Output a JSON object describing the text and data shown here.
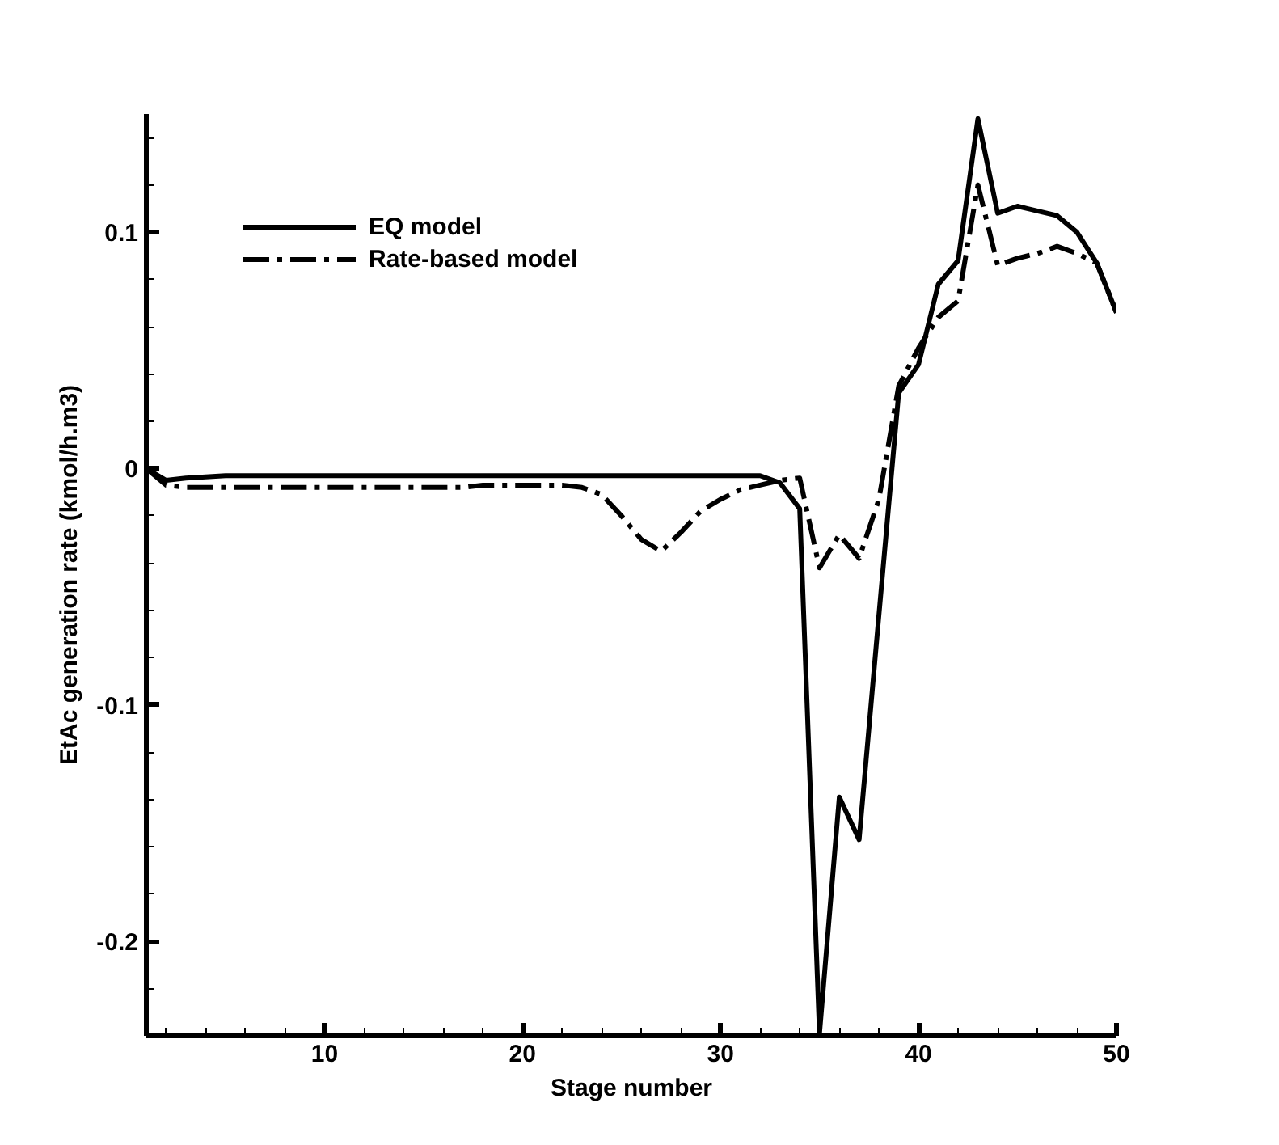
{
  "chart_data": {
    "type": "line",
    "xlabel": "Stage number",
    "ylabel": "EtAc generation rate (kmol/h.m3)",
    "x": [
      1,
      2,
      3,
      4,
      5,
      6,
      7,
      8,
      9,
      10,
      11,
      12,
      13,
      14,
      15,
      16,
      17,
      18,
      19,
      20,
      21,
      22,
      23,
      24,
      25,
      26,
      27,
      28,
      29,
      30,
      31,
      32,
      33,
      34,
      35,
      36,
      37,
      38,
      39,
      40,
      41,
      42,
      43,
      44,
      45,
      46,
      47,
      48,
      49,
      50
    ],
    "series": [
      {
        "name": "EQ model",
        "color": "#000000",
        "line_style": "solid",
        "values": [
          0,
          -0.005,
          -0.004,
          -0.0035,
          -0.003,
          -0.003,
          -0.003,
          -0.003,
          -0.003,
          -0.003,
          -0.003,
          -0.003,
          -0.003,
          -0.003,
          -0.003,
          -0.003,
          -0.003,
          -0.003,
          -0.003,
          -0.003,
          -0.003,
          -0.003,
          -0.003,
          -0.003,
          -0.003,
          -0.003,
          -0.003,
          -0.003,
          -0.003,
          -0.003,
          -0.003,
          -0.003,
          -0.006,
          -0.017,
          -0.239,
          -0.139,
          -0.157,
          -0.062,
          0.032,
          0.044,
          0.078,
          0.088,
          0.148,
          0.108,
          0.111,
          0.109,
          0.107,
          0.1,
          0.087,
          0.066
        ]
      },
      {
        "name": "Rate-based model",
        "color": "#000000",
        "line_style": "dashdot",
        "values": [
          0,
          -0.007,
          -0.008,
          -0.008,
          -0.008,
          -0.008,
          -0.008,
          -0.008,
          -0.008,
          -0.008,
          -0.008,
          -0.008,
          -0.008,
          -0.008,
          -0.008,
          -0.008,
          -0.008,
          -0.007,
          -0.007,
          -0.007,
          -0.007,
          -0.007,
          -0.008,
          -0.011,
          -0.02,
          -0.03,
          -0.035,
          -0.027,
          -0.018,
          -0.013,
          -0.009,
          -0.007,
          -0.005,
          -0.004,
          -0.042,
          -0.028,
          -0.038,
          -0.013,
          0.035,
          0.051,
          0.064,
          0.071,
          0.12,
          0.086,
          0.089,
          0.091,
          0.094,
          0.091,
          0.087,
          0.066
        ]
      }
    ],
    "xlim": [
      1,
      50
    ],
    "ylim": [
      -0.24,
      0.15
    ],
    "xticks": [
      10,
      20,
      30,
      40,
      50
    ],
    "yticks": [
      -0.2,
      -0.1,
      0,
      0.1
    ],
    "grid": false,
    "legend": "top left"
  }
}
